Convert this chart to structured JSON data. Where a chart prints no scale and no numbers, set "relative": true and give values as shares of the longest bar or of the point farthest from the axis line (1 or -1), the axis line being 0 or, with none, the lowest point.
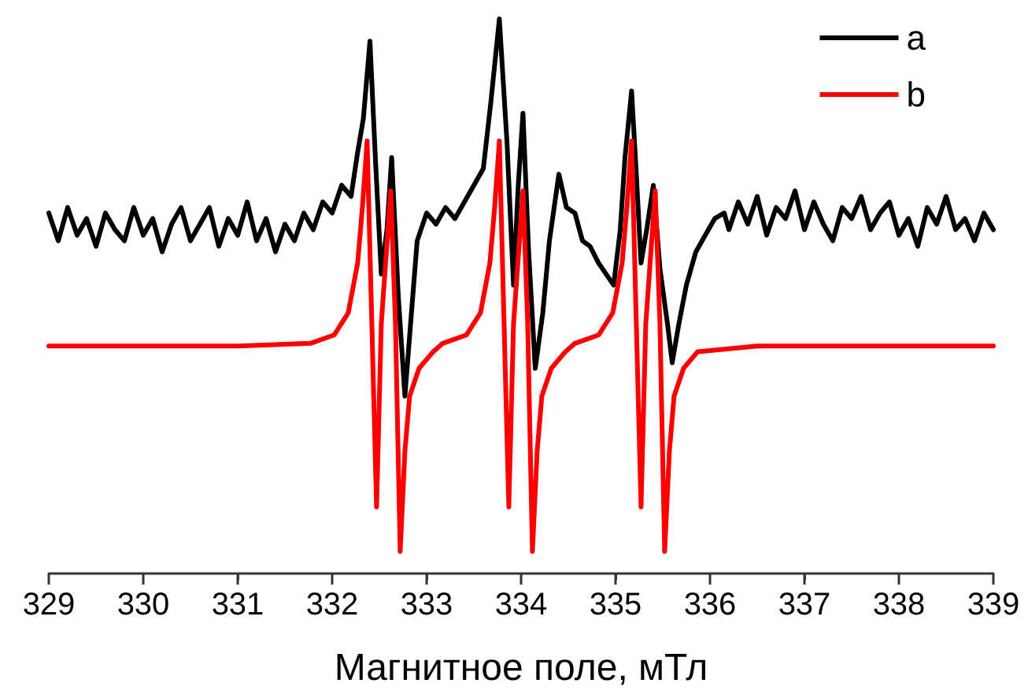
{
  "chart_data": {
    "type": "line",
    "xlabel": "Магнитное поле, мТл",
    "relative": true,
    "xlim": [
      329,
      339
    ],
    "xticks": [
      329,
      330,
      331,
      332,
      333,
      334,
      335,
      336,
      337,
      338,
      339
    ],
    "legend": "top right",
    "grid": false,
    "marker": "none",
    "line_style": "solid",
    "series": [
      {
        "name": "a",
        "color": "#000000",
        "x": [
          329.0,
          329.1,
          329.2,
          329.3,
          329.4,
          329.5,
          329.6,
          329.7,
          329.8,
          329.9,
          330.0,
          330.1,
          330.2,
          330.3,
          330.4,
          330.5,
          330.6,
          330.7,
          330.8,
          330.9,
          331.0,
          331.1,
          331.2,
          331.3,
          331.4,
          331.5,
          331.6,
          331.7,
          331.8,
          331.9,
          332.0,
          332.1,
          332.2,
          332.27,
          332.33,
          332.4,
          332.46,
          332.52,
          332.58,
          332.63,
          332.7,
          332.77,
          332.83,
          332.9,
          333.0,
          333.1,
          333.2,
          333.3,
          333.4,
          333.5,
          333.6,
          333.68,
          333.77,
          333.85,
          333.92,
          333.97,
          334.02,
          334.08,
          334.15,
          334.23,
          334.3,
          334.4,
          334.48,
          334.57,
          334.65,
          334.73,
          334.82,
          334.9,
          334.98,
          335.05,
          335.1,
          335.17,
          335.22,
          335.27,
          335.33,
          335.4,
          335.47,
          335.55,
          335.6,
          335.67,
          335.75,
          335.85,
          335.95,
          336.05,
          336.15,
          336.2,
          336.3,
          336.4,
          336.5,
          336.6,
          336.7,
          336.8,
          336.9,
          337.0,
          337.1,
          337.2,
          337.3,
          337.4,
          337.5,
          337.6,
          337.7,
          337.8,
          337.9,
          338.0,
          338.1,
          338.2,
          338.3,
          338.4,
          338.5,
          338.6,
          338.7,
          338.8,
          338.9,
          339.0
        ],
        "values": [
          0.65,
          0.6,
          0.66,
          0.61,
          0.64,
          0.59,
          0.65,
          0.62,
          0.6,
          0.66,
          0.61,
          0.64,
          0.58,
          0.63,
          0.66,
          0.6,
          0.63,
          0.66,
          0.59,
          0.64,
          0.61,
          0.67,
          0.6,
          0.64,
          0.58,
          0.63,
          0.6,
          0.65,
          0.62,
          0.67,
          0.65,
          0.7,
          0.68,
          0.76,
          0.82,
          0.96,
          0.74,
          0.54,
          0.62,
          0.75,
          0.5,
          0.32,
          0.45,
          0.6,
          0.65,
          0.63,
          0.66,
          0.64,
          0.67,
          0.7,
          0.73,
          0.85,
          1.0,
          0.78,
          0.52,
          0.7,
          0.83,
          0.58,
          0.37,
          0.47,
          0.6,
          0.72,
          0.66,
          0.65,
          0.6,
          0.59,
          0.56,
          0.54,
          0.52,
          0.62,
          0.75,
          0.87,
          0.72,
          0.56,
          0.62,
          0.7,
          0.55,
          0.45,
          0.38,
          0.45,
          0.52,
          0.58,
          0.61,
          0.64,
          0.65,
          0.62,
          0.67,
          0.63,
          0.68,
          0.61,
          0.66,
          0.64,
          0.69,
          0.62,
          0.67,
          0.63,
          0.6,
          0.66,
          0.64,
          0.68,
          0.62,
          0.65,
          0.67,
          0.61,
          0.64,
          0.59,
          0.66,
          0.63,
          0.68,
          0.62,
          0.64,
          0.6,
          0.65,
          0.62
        ]
      },
      {
        "name": "b",
        "color": "#ff0000",
        "x": [
          329.0,
          331.0,
          331.77,
          332.02,
          332.17,
          332.27,
          332.32,
          332.37,
          332.42,
          332.47,
          332.52,
          332.62,
          332.67,
          332.72,
          332.77,
          332.82,
          332.92,
          333.07,
          333.17,
          333.42,
          333.57,
          333.67,
          333.72,
          333.77,
          333.82,
          333.87,
          333.92,
          334.02,
          334.07,
          334.12,
          334.17,
          334.22,
          334.32,
          334.47,
          334.57,
          334.82,
          334.97,
          335.07,
          335.12,
          335.17,
          335.22,
          335.27,
          335.32,
          335.42,
          335.47,
          335.52,
          335.57,
          335.62,
          335.72,
          335.87,
          336.5,
          339.0
        ],
        "values": [
          0.41,
          0.41,
          0.415,
          0.43,
          0.47,
          0.56,
          0.66,
          0.78,
          0.45,
          0.12,
          0.45,
          0.69,
          0.45,
          0.04,
          0.22,
          0.32,
          0.37,
          0.4,
          0.415,
          0.43,
          0.47,
          0.56,
          0.66,
          0.78,
          0.45,
          0.12,
          0.45,
          0.69,
          0.45,
          0.04,
          0.22,
          0.32,
          0.37,
          0.4,
          0.415,
          0.43,
          0.47,
          0.56,
          0.66,
          0.78,
          0.45,
          0.12,
          0.45,
          0.69,
          0.45,
          0.04,
          0.22,
          0.32,
          0.37,
          0.4,
          0.41,
          0.41
        ]
      }
    ]
  }
}
